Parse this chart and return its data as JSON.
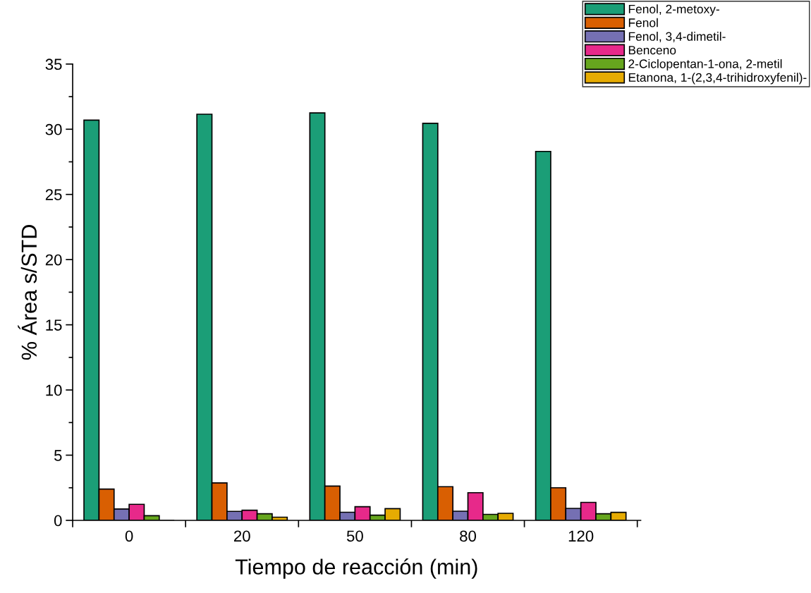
{
  "chart_data": {
    "type": "bar",
    "xlabel": "Tiempo de reacción (min)",
    "ylabel": "% Área s/STD",
    "categories": [
      "0",
      "20",
      "50",
      "80",
      "120"
    ],
    "series": [
      {
        "name": "Fenol, 2-metoxy-",
        "color": "#1b9e77",
        "values": [
          30.7,
          31.15,
          31.25,
          30.45,
          28.3
        ]
      },
      {
        "name": "Fenol",
        "color": "#d95f02",
        "values": [
          2.4,
          2.87,
          2.63,
          2.58,
          2.5
        ]
      },
      {
        "name": "Fenol, 3,4-dimetil-",
        "color": "#7570b3",
        "values": [
          0.87,
          0.69,
          0.62,
          0.7,
          0.92
        ]
      },
      {
        "name": "Benceno",
        "color": "#e7298a",
        "values": [
          1.23,
          0.78,
          1.05,
          2.12,
          1.38
        ]
      },
      {
        "name": "2-Ciclopentan-1-ona, 2-metil",
        "color": "#66a61e",
        "values": [
          0.36,
          0.51,
          0.4,
          0.46,
          0.51
        ]
      },
      {
        "name": "Etanona, 1-(2,3,4-trihidroxyfenil)-",
        "color": "#e6ab02",
        "values": [
          0,
          0.24,
          0.9,
          0.54,
          0.61
        ]
      }
    ],
    "ylim": [
      0,
      35
    ],
    "yticks": [
      0,
      5,
      10,
      15,
      20,
      25,
      30,
      35
    ],
    "grid": false,
    "legend": "top right"
  }
}
